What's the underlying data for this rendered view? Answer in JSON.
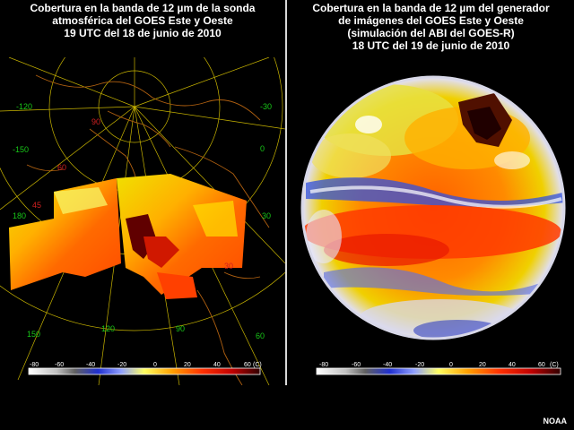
{
  "left_panel": {
    "title_line1": "Cobertura en la banda de 12 µm de la sonda",
    "title_line2": "atmosférica del GOES Este y Oeste",
    "title_line3": "19 UTC del 18 de junio de 2010",
    "grid_labels_green": [
      "-120",
      "-150",
      "180",
      "150",
      "120",
      "90",
      "60",
      "30",
      "0",
      "-30"
    ],
    "grid_labels_red": [
      "90",
      "60",
      "45",
      "30"
    ],
    "colorbar_ticks": [
      "-80",
      "-60",
      "-40",
      "-20",
      "0",
      "20",
      "40",
      "60"
    ],
    "colorbar_unit": "(C)"
  },
  "right_panel": {
    "title_line1": "Cobertura en la banda de 12 µm del generador",
    "title_line2": "de imágenes del GOES Este y Oeste",
    "title_line3": "(simulación del ABI del GOES-R)",
    "title_line4": "18 UTC del 19 de junio de 2010",
    "colorbar_ticks": [
      "-80",
      "-60",
      "-40",
      "-20",
      "0",
      "20",
      "40",
      "60"
    ],
    "colorbar_unit": "(C)"
  },
  "credit": "NOAA",
  "colors": {
    "cold": "#ffffff",
    "blue": "#2030d0",
    "yellow": "#f0f000",
    "orange": "#ff7a00",
    "red": "#e82000",
    "dark": "#400000",
    "graticule": "#c8b400",
    "coastline": "#b06010"
  }
}
